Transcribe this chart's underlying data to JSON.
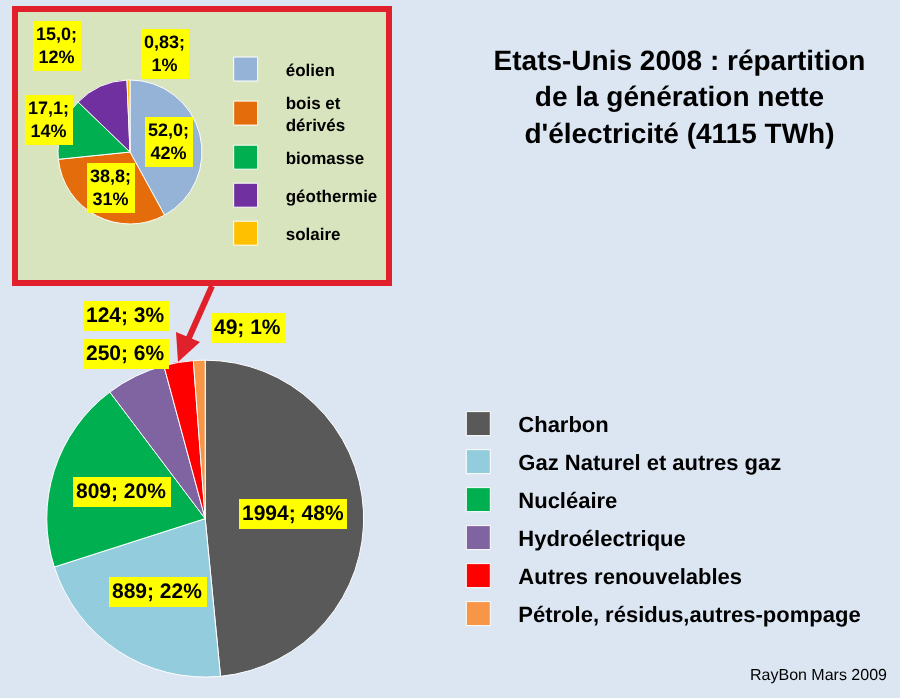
{
  "chart_data": [
    {
      "type": "pie",
      "title": "Etats-Unis 2008 : répartition de la génération nette d'électricité (4115 TWh)",
      "categories": [
        "Charbon",
        "Gaz Naturel et autres gaz",
        "Nucléaire",
        "Hydroélectrique",
        "Autres renouvelables",
        "Pétrole, résidus,autres-pompage"
      ],
      "values": [
        1994,
        889,
        809,
        250,
        124,
        49
      ],
      "colors": [
        "#595959",
        "#93cddd",
        "#00b050",
        "#8064a2",
        "#ff0000",
        "#f79646"
      ],
      "value_labels": [
        "1994; 48%",
        "889; 22%",
        "809; 20%",
        "250; 6%",
        "124; 3%",
        "49; 1%"
      ],
      "legend": "right",
      "annotations": [
        "RayBon Mars 2009"
      ]
    },
    {
      "type": "pie",
      "categories": [
        "éolien",
        "bois et dérivés",
        "biomasse",
        "géothermie",
        "solaire"
      ],
      "values": [
        52.0,
        38.8,
        17.1,
        15.0,
        0.83
      ],
      "colors": [
        "#95b3d7",
        "#e46c0a",
        "#00b050",
        "#7030a0",
        "#ffc000"
      ],
      "value_labels": [
        "52,0; 42%",
        "38,8; 31%",
        "17,1; 14%",
        "15,0; 12%",
        "0,83; 1%"
      ],
      "legend": "right"
    }
  ]
}
